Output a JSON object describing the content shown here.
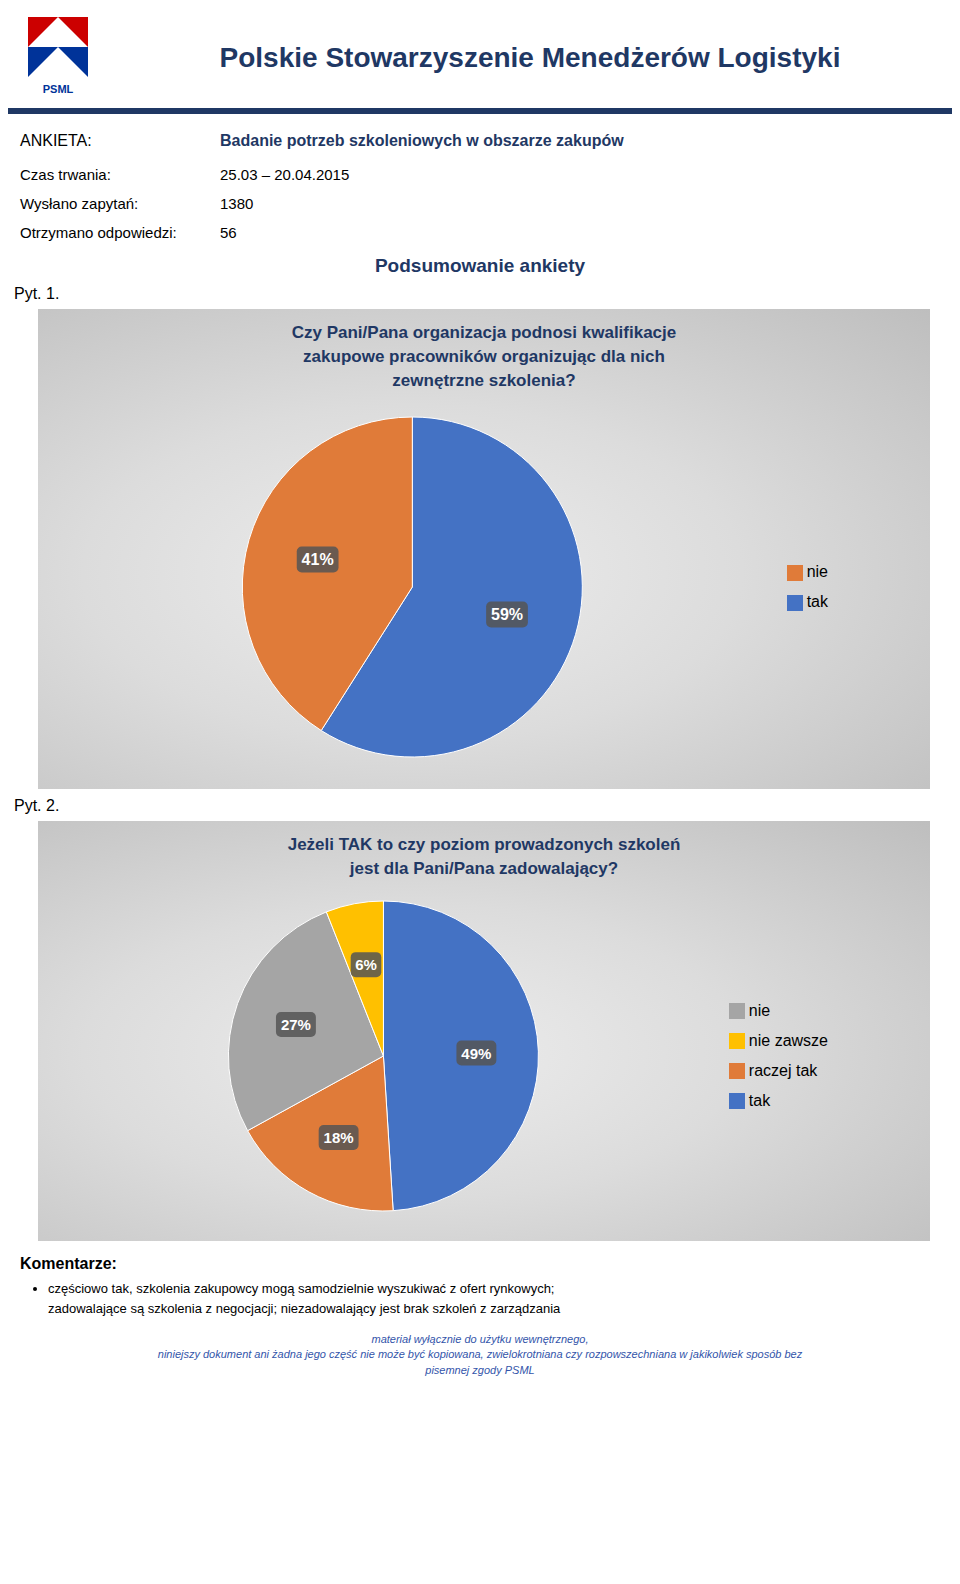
{
  "chart_data": [
    {
      "type": "pie",
      "subtitle": "Pyt. 1.",
      "title": "Czy Pani/Pana organizacja podnosi kwalifikacje\nzakupowe pracowników organizując dla nich\nzewnętrzne szkolenia?",
      "categories": [
        "tak",
        "nie"
      ],
      "values": [
        59,
        41
      ],
      "value_labels": [
        "59%",
        "41%"
      ],
      "colors": [
        "#4472C4",
        "#E07B39"
      ],
      "data_labels": true,
      "legend": "right",
      "annotations": [
        "Polskie Stowarzyszenie Menedżerów Logistyki",
        "PSML",
        "ANKIETA:",
        "Badanie potrzeb szkoleniowych w obszarze zakupów",
        "Czas trwania:",
        "25.03 – 20.04.2015",
        "Wysłano zapytań:",
        "1380",
        "Otrzymano odpowiedzi:",
        "56",
        "Podsumowanie ankiety"
      ]
    },
    {
      "type": "pie",
      "subtitle": "Pyt. 2.",
      "title": "Jeżeli TAK to czy poziom prowadzonych szkoleń\njest dla Pani/Pana zadowalający?",
      "categories": [
        "tak",
        "raczej tak",
        "nie",
        "nie zawsze"
      ],
      "values": [
        49,
        18,
        27,
        6
      ],
      "value_labels": [
        "49%",
        "18%",
        "27%",
        "6%"
      ],
      "colors": [
        "#4472C4",
        "#E07B39",
        "#A5A5A5",
        "#FFC000"
      ],
      "data_labels": true,
      "legend": "right",
      "annotations": [
        "Komentarze:",
        "częściowo tak, szkolenia zakupowcy mogą samodzielnie wyszukiwać z ofert rynkowych;\nzadowalające są szkolenia z negocjacji; niezadowalający jest brak szkoleń z zarządzania",
        "materiał wyłącznie do użytku wewnętrznego,",
        "niniejszy dokument ani żadna jego część nie może być kopiowana, zwielokrotniana czy rozpowszechniana w jakikolwiek sposób bez",
        "pisemnej zgody PSML"
      ]
    }
  ]
}
